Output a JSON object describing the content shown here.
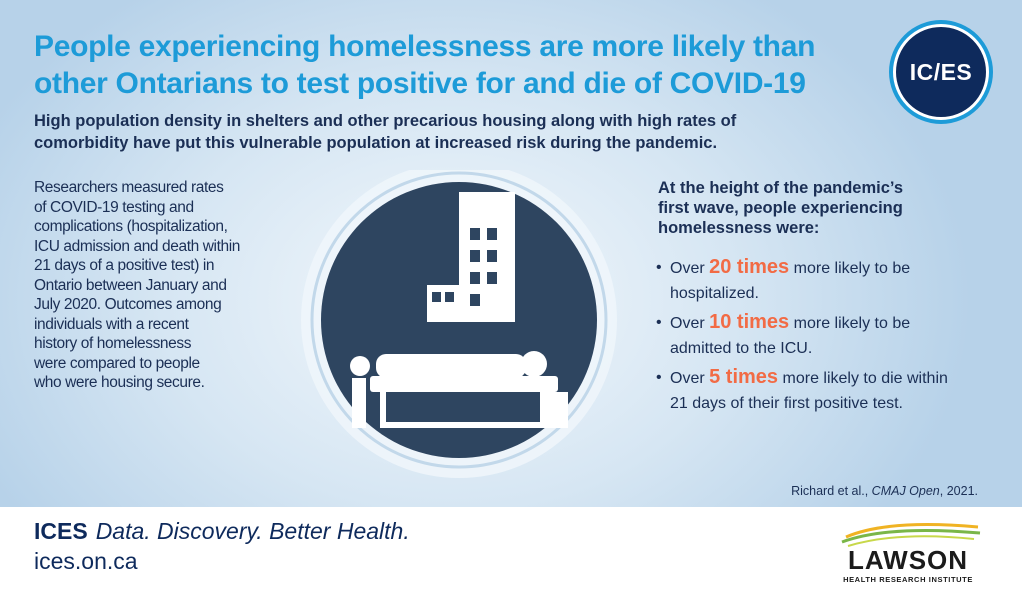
{
  "headline": {
    "line1": "People experiencing homelessness are more likely than",
    "line2": "other Ontarians to test positive for and die of COVID-19"
  },
  "subhead": {
    "line1": "High population density in shelters and other precarious housing along with high rates of",
    "line2": "comorbidity have put this vulnerable population at increased risk during the pandemic."
  },
  "logo": {
    "text": "IC/ES"
  },
  "left_text": {
    "lines": [
      "Researchers measured rates",
      "of COVID-19 testing and",
      "complications (hospitalization,",
      "ICU admission and death within",
      "21 days of a positive test) in",
      "Ontario between January and",
      "July 2020. Outcomes among",
      "individuals with a recent",
      "history of homelessness",
      "were compared to people",
      "who were housing secure."
    ]
  },
  "right": {
    "head_lines": [
      "At the height of the pandemic’s",
      "first wave, people experiencing",
      "homelessness were:"
    ],
    "stats": [
      {
        "prefix": "Over ",
        "big": "20 times",
        "rest": " more likely to be",
        "line2": "hospitalized."
      },
      {
        "prefix": "Over ",
        "big": "10 times",
        "rest": " more likely to be",
        "line2": "admitted to the ICU."
      },
      {
        "prefix": "Over ",
        "big": "5 times",
        "rest": " more likely to die within",
        "line2": "21 days of their first positive test."
      }
    ]
  },
  "citation": {
    "authors": "Richard et al., ",
    "journal": "CMAJ Open",
    "year": ", 2021."
  },
  "footer": {
    "brand": "ICES",
    "tagline": "Data. Discovery. Better Health.",
    "url": "ices.on.ca"
  },
  "lawson": {
    "name": "LAWSON",
    "subtitle": "HEALTH RESEARCH INSTITUTE"
  },
  "colors": {
    "headline": "#1d9bd8",
    "navy": "#1b2f55",
    "accent": "#f26b45",
    "circle": "#2e4560"
  },
  "icons": {
    "illustration": "person-sleeping-on-cot-under-moon-and-building-icon",
    "lawson_logo": "lawson-swoosh-icon"
  }
}
